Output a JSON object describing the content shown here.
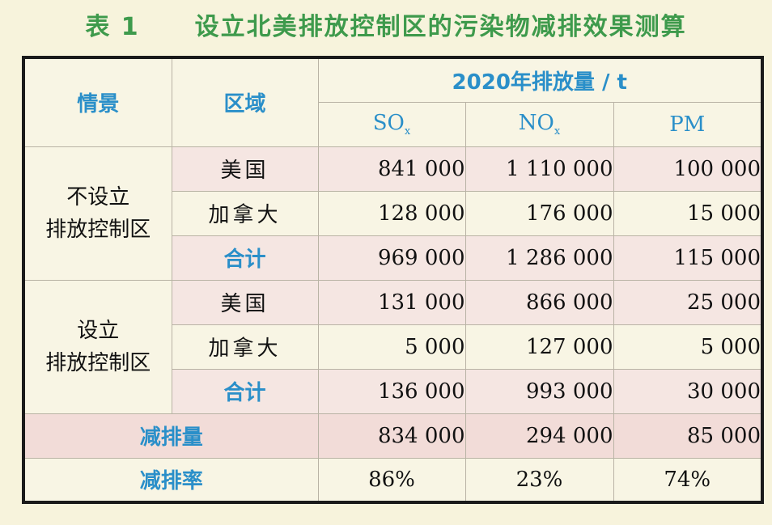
{
  "title": {
    "label": "表 1",
    "text": "设立北美排放控制区的污染物减排效果测算"
  },
  "header": {
    "scenario": "情景",
    "region": "区域",
    "emissions": "2020年排放量 / t",
    "so": "SO",
    "so_sub": "x",
    "no": "NO",
    "no_sub": "x",
    "pm": "PM"
  },
  "groups": [
    {
      "scenario_line1": "不设立",
      "scenario_line2": "排放控制区",
      "rows": [
        {
          "region": "美国",
          "so": "841 000",
          "no": "1 110 000",
          "pm": "100 000"
        },
        {
          "region": "加拿大",
          "so": "128 000",
          "no": "176 000",
          "pm": "15 000"
        },
        {
          "region": "合计",
          "so": "969 000",
          "no": "1 286 000",
          "pm": "115 000"
        }
      ]
    },
    {
      "scenario_line1": "设立",
      "scenario_line2": "排放控制区",
      "rows": [
        {
          "region": "美国",
          "so": "131 000",
          "no": "866 000",
          "pm": "25 000"
        },
        {
          "region": "加拿大",
          "so": "5 000",
          "no": "127 000",
          "pm": "5 000"
        },
        {
          "region": "合计",
          "so": "136 000",
          "no": "993 000",
          "pm": "30 000"
        }
      ]
    }
  ],
  "reduction": {
    "label": "减排量",
    "so": "834 000",
    "no": "294 000",
    "pm": "85 000"
  },
  "rate": {
    "label": "减排率",
    "so": "86%",
    "no": "23%",
    "pm": "74%"
  }
}
